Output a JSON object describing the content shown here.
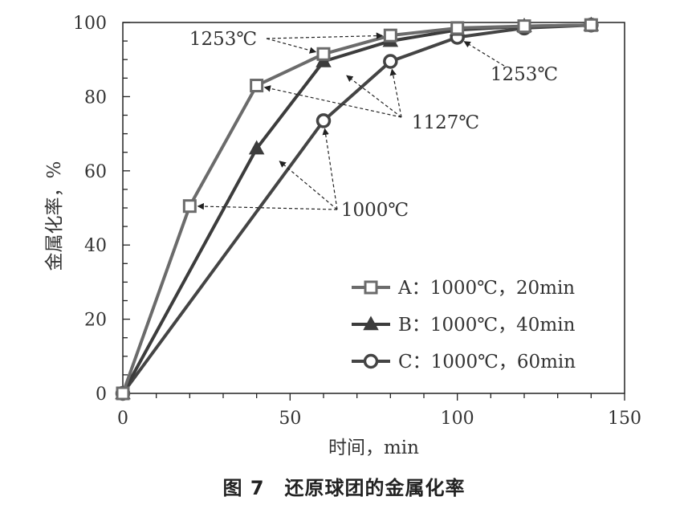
{
  "chart_data": {
    "type": "line",
    "title": "图 7　还原球团的金属化率",
    "xlabel": "时间，min",
    "ylabel": "金属化率，%",
    "xlim": [
      0,
      150
    ],
    "ylim": [
      0,
      100
    ],
    "xticks": [
      0,
      50,
      100,
      150
    ],
    "yticks": [
      0,
      20,
      40,
      60,
      80,
      100
    ],
    "grid": false,
    "legend_position": "bottom-right",
    "series": [
      {
        "key": "A",
        "name": "A：1000℃，20min",
        "marker": "square",
        "color": "#6b6b6b",
        "x": [
          0,
          20,
          40,
          60,
          80,
          100,
          120,
          140
        ],
        "y": [
          0,
          50.5,
          83,
          91.5,
          96.5,
          98.5,
          99,
          99.3
        ]
      },
      {
        "key": "B",
        "name": "B：1000℃，40min",
        "marker": "triangle",
        "color": "#3c3c3c",
        "x": [
          0,
          40,
          60,
          80,
          100,
          120,
          140
        ],
        "y": [
          0,
          66,
          89.5,
          95,
          98,
          99,
          99.3
        ]
      },
      {
        "key": "C",
        "name": "C：1000℃，60min",
        "marker": "circle",
        "color": "#444444",
        "x": [
          0,
          60,
          80,
          100,
          120,
          140
        ],
        "y": [
          0,
          73.5,
          89.5,
          96,
          98.5,
          99.3
        ]
      }
    ],
    "annotations": [
      {
        "text": "1253℃",
        "targets": [
          {
            "x": 60,
            "y": 91.5
          },
          {
            "x": 80,
            "y": 96.5
          }
        ]
      },
      {
        "text": "1253℃",
        "targets": [
          {
            "x": 100,
            "y": 96
          }
        ]
      },
      {
        "text": "1127℃",
        "targets": [
          {
            "x": 40,
            "y": 83
          },
          {
            "x": 65,
            "y": 87
          },
          {
            "x": 80,
            "y": 89.5
          }
        ]
      },
      {
        "text": "1000℃",
        "targets": [
          {
            "x": 20,
            "y": 50.5
          },
          {
            "x": 45,
            "y": 64
          },
          {
            "x": 60,
            "y": 73.5
          }
        ]
      }
    ]
  }
}
